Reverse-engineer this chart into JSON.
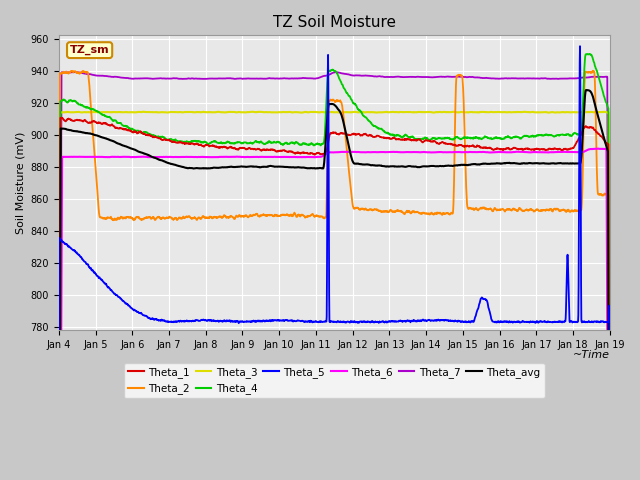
{
  "title": "TZ Soil Moisture",
  "xlabel": "~Time",
  "ylabel": "Soil Moisture (mV)",
  "ylim": [
    778,
    962
  ],
  "xlim": [
    0,
    15
  ],
  "xtick_labels": [
    "Jan 4",
    "Jan 5",
    "Jan 6",
    "Jan 7",
    "Jan 8",
    "Jan 9",
    "Jan 10",
    "Jan 11",
    "Jan 12",
    "Jan 13",
    "Jan 14",
    "Jan 15",
    "Jan 16",
    "Jan 17",
    "Jan 18",
    "Jan 19"
  ],
  "yticks": [
    780,
    800,
    820,
    840,
    860,
    880,
    900,
    920,
    940,
    960
  ],
  "fig_bg": "#c8c8c8",
  "plot_bg": "#e8e8e8",
  "grid_color": "#ffffff",
  "series_colors": {
    "Theta_1": "#dd0000",
    "Theta_2": "#ff8800",
    "Theta_3": "#dddd00",
    "Theta_4": "#00cc00",
    "Theta_5": "#0000ff",
    "Theta_6": "#ff00ff",
    "Theta_7": "#aa00cc",
    "Theta_avg": "#000000"
  },
  "annot": {
    "text": "TZ_sm",
    "fc": "#ffffcc",
    "ec": "#cc8800",
    "tc": "#880000"
  }
}
